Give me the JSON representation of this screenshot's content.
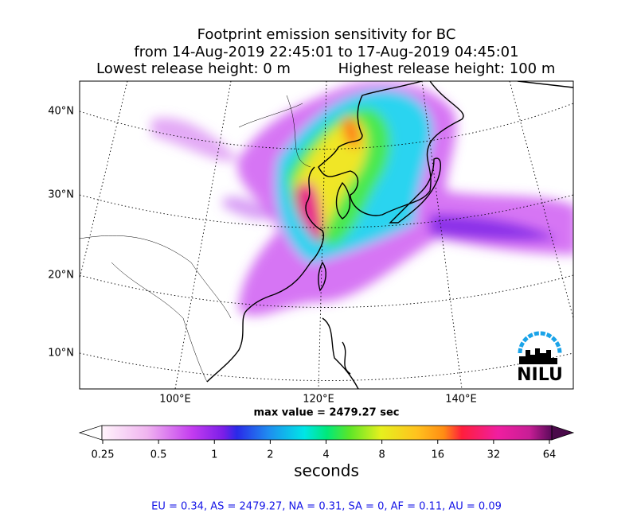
{
  "title": {
    "line1": "Footprint emission sensitivity for BC",
    "line2": "from 14-Aug-2019 22:45:01 to 17-Aug-2019 04:45:01",
    "lowest": "Lowest release height: 0 m",
    "highest": "Highest release height: 100 m"
  },
  "map": {
    "lat_labels": [
      "40°N",
      "30°N",
      "20°N",
      "10°N"
    ],
    "lon_labels": [
      "100°E",
      "120°E",
      "140°E"
    ],
    "logo": "NILU",
    "max_value": "max value = 2479.27 sec"
  },
  "colorbar": {
    "ticks": [
      "0.25",
      "0.5",
      "1",
      "2",
      "4",
      "8",
      "16",
      "32",
      "64"
    ],
    "label": "seconds"
  },
  "footer": "EU = 0.34,  AS = 2479.27,  NA = 0.31,  SA = 0,  AF = 0.11,  AU = 0.09"
}
